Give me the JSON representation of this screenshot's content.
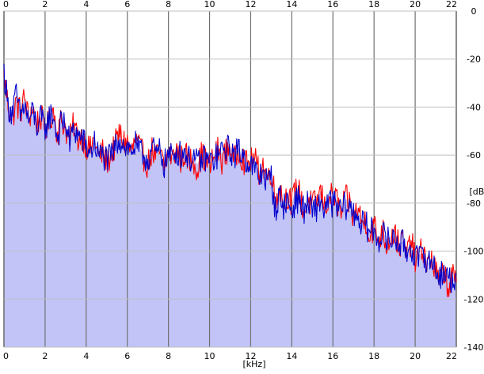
{
  "chart_data": {
    "type": "area",
    "title": "",
    "xlabel": "[kHz]",
    "ylabel": "[dB]",
    "xlim": [
      0,
      22
    ],
    "ylim": [
      -140,
      0
    ],
    "x_ticks": [
      "0",
      "2",
      "4",
      "6",
      "8",
      "10",
      "12",
      "14",
      "16",
      "18",
      "20",
      "22"
    ],
    "y_ticks": [
      "0",
      "-20",
      "-40",
      "-60",
      "-80",
      "-100",
      "-120",
      "-140"
    ],
    "x_tick_values": [
      0,
      2,
      4,
      6,
      8,
      10,
      12,
      14,
      16,
      18,
      20,
      22
    ],
    "y_tick_values": [
      0,
      -20,
      -40,
      -60,
      -80,
      -100,
      -120,
      -140
    ],
    "grid": true,
    "x": [
      0,
      0.2,
      0.4,
      0.6,
      0.8,
      1,
      1.2,
      1.4,
      1.6,
      1.8,
      2,
      2.2,
      2.4,
      2.6,
      2.8,
      3,
      3.2,
      3.4,
      3.6,
      3.8,
      4,
      4.2,
      4.4,
      4.6,
      4.8,
      5,
      5.2,
      5.4,
      5.6,
      5.8,
      6,
      6.2,
      6.4,
      6.6,
      6.8,
      7,
      7.2,
      7.4,
      7.6,
      7.8,
      8,
      8.2,
      8.4,
      8.6,
      8.8,
      9,
      9.2,
      9.4,
      9.6,
      9.8,
      10,
      10.2,
      10.4,
      10.6,
      10.8,
      11,
      11.2,
      11.4,
      11.6,
      11.8,
      12,
      12.2,
      12.4,
      12.6,
      12.8,
      13,
      13.2,
      13.4,
      13.6,
      13.8,
      14,
      14.2,
      14.4,
      14.6,
      14.8,
      15,
      15.2,
      15.4,
      15.6,
      15.8,
      16,
      16.2,
      16.4,
      16.6,
      16.8,
      17,
      17.2,
      17.4,
      17.6,
      17.8,
      18,
      18.2,
      18.4,
      18.6,
      18.8,
      19,
      19.2,
      19.4,
      19.6,
      19.8,
      20,
      20.2,
      20.4,
      20.6,
      20.8,
      21,
      21.2,
      21.4,
      21.6,
      21.8,
      22
    ],
    "series": [
      {
        "color": "#ff0000",
        "values": [
          -27,
          -39,
          -45,
          -38,
          -42,
          -36,
          -45,
          -40,
          -47,
          -44,
          -50,
          -46,
          -41,
          -51,
          -45,
          -49,
          -54,
          -47,
          -53,
          -52,
          -56,
          -58,
          -53,
          -61,
          -59,
          -63,
          -60,
          -56,
          -51,
          -54,
          -55,
          -59,
          -54,
          -57,
          -61,
          -64,
          -58,
          -61,
          -59,
          -66,
          -58,
          -62,
          -57,
          -62,
          -59,
          -63,
          -61,
          -66,
          -60,
          -62,
          -65,
          -61,
          -58,
          -62,
          -59,
          -56,
          -63,
          -57,
          -61,
          -64,
          -63,
          -62,
          -67,
          -64,
          -70,
          -66,
          -79,
          -73,
          -80,
          -76,
          -81,
          -73,
          -77,
          -84,
          -79,
          -81,
          -80,
          -75,
          -82,
          -78,
          -77,
          -79,
          -85,
          -78,
          -80,
          -86,
          -82,
          -88,
          -87,
          -94,
          -89,
          -96,
          -91,
          -97,
          -94,
          -92,
          -98,
          -96,
          -102,
          -95,
          -104,
          -102,
          -99,
          -106,
          -103,
          -109,
          -113,
          -108,
          -115,
          -111,
          -113
        ]
      },
      {
        "color": "#0000cc",
        "values": [
          -25,
          -40,
          -42,
          -35,
          -44,
          -39,
          -46,
          -42,
          -48,
          -45,
          -49,
          -44,
          -43,
          -53,
          -46,
          -47,
          -55,
          -49,
          -52,
          -53,
          -57,
          -59,
          -55,
          -60,
          -60,
          -62,
          -61,
          -57,
          -53,
          -55,
          -57,
          -58,
          -56,
          -59,
          -60,
          -62,
          -57,
          -60,
          -58,
          -64,
          -60,
          -61,
          -58,
          -60,
          -58,
          -62,
          -60,
          -64,
          -62,
          -61,
          -63,
          -62,
          -60,
          -59,
          -57,
          -58,
          -60,
          -58,
          -60,
          -62,
          -64,
          -66,
          -70,
          -66,
          -72,
          -69,
          -83,
          -77,
          -81,
          -79,
          -84,
          -78,
          -79,
          -83,
          -80,
          -84,
          -82,
          -79,
          -83,
          -80,
          -80,
          -82,
          -83,
          -81,
          -82,
          -84,
          -85,
          -89,
          -89,
          -92,
          -91,
          -95,
          -93,
          -95,
          -96,
          -94,
          -97,
          -97,
          -100,
          -98,
          -102,
          -104,
          -100,
          -105,
          -104,
          -108,
          -110,
          -109,
          -111,
          -112,
          -110
        ]
      }
    ]
  }
}
